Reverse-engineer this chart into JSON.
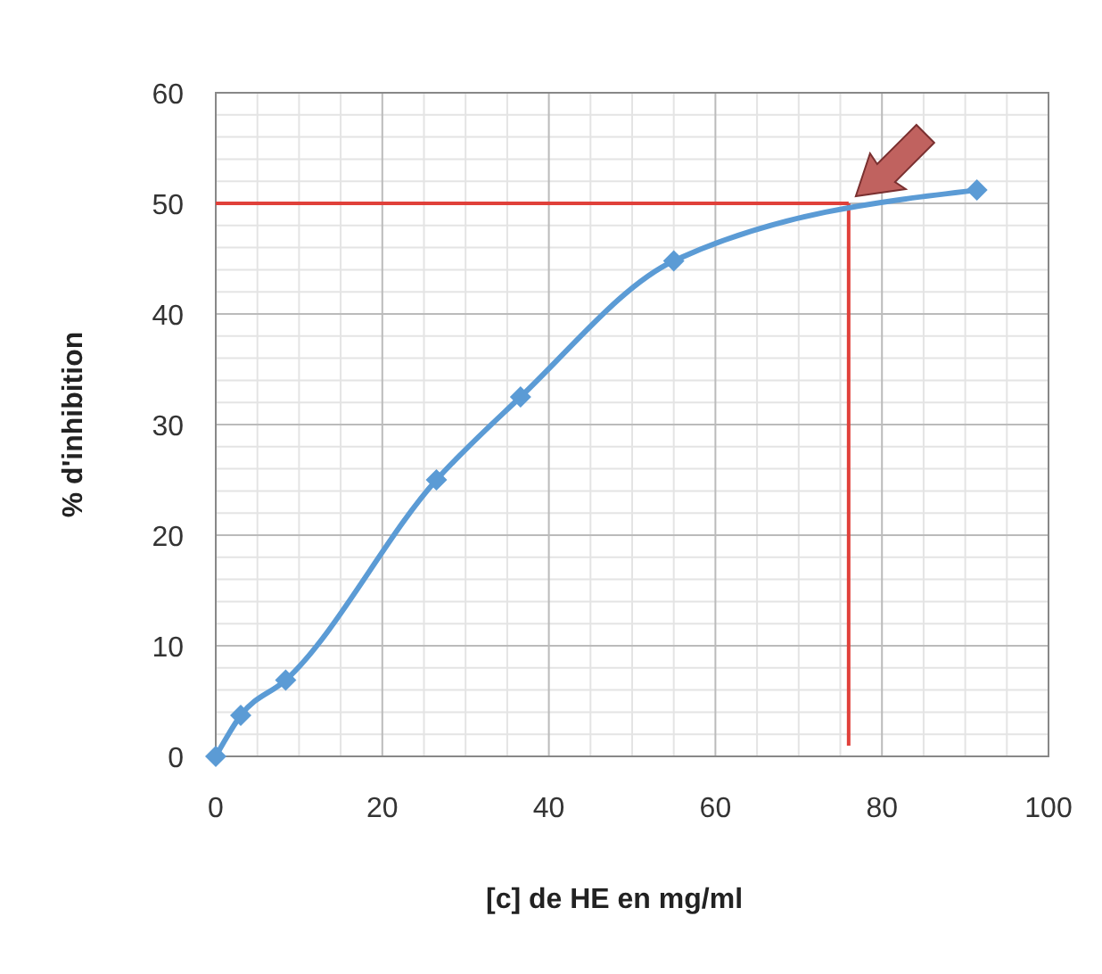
{
  "chart_data": {
    "type": "line",
    "xlabel": "[c] de HE en mg/ml",
    "ylabel": "% d'inhibition",
    "x": [
      0,
      3,
      8.4,
      26.5,
      36.6,
      55,
      91.4
    ],
    "series": [
      {
        "color": "#5b9bd5",
        "values": [
          0,
          3.7,
          6.9,
          25,
          32.5,
          44.8,
          51.2
        ]
      }
    ],
    "xlim": [
      0,
      100
    ],
    "xticks": [
      0,
      20,
      40,
      60,
      80,
      100
    ],
    "ylim": [
      0,
      60
    ],
    "yticks": [
      0,
      10,
      20,
      30,
      40,
      50,
      60
    ],
    "grid": true,
    "marker": "diamond",
    "line_style": "solid",
    "ref_lines": [
      {
        "axis": "y",
        "value": 50,
        "color": "#e0403a"
      },
      {
        "axis": "x",
        "value": 76,
        "color": "#e0403a"
      }
    ]
  }
}
